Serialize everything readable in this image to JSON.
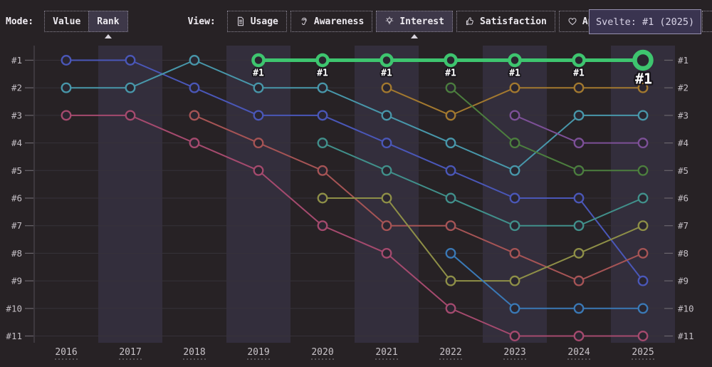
{
  "toolbar": {
    "mode_label": "Mode:",
    "modes": [
      {
        "label": "Value",
        "selected": false
      },
      {
        "label": "Rank",
        "selected": true
      }
    ],
    "view_label": "View:",
    "views": [
      {
        "label": "Usage",
        "icon": "document-icon",
        "selected": false
      },
      {
        "label": "Awareness",
        "icon": "ear-icon",
        "selected": false
      },
      {
        "label": "Interest",
        "icon": "lightbulb-icon",
        "selected": true
      },
      {
        "label": "Satisfaction",
        "icon": "thumbs-up-icon",
        "selected": false
      },
      {
        "label": "Appreciation",
        "icon": "heart-icon",
        "selected": false
      }
    ]
  },
  "tooltip": {
    "text": "Svelte: #1 (2025)"
  },
  "chart_data": {
    "type": "line",
    "subtype": "bump-rank",
    "x": [
      2016,
      2017,
      2018,
      2019,
      2020,
      2021,
      2022,
      2023,
      2024,
      2025
    ],
    "y_axis": {
      "labels": [
        "#1",
        "#2",
        "#3",
        "#4",
        "#5",
        "#6",
        "#7",
        "#8",
        "#9",
        "#10",
        "#11"
      ],
      "min": 1,
      "max": 11,
      "inverted": true
    },
    "banded_years": [
      2017,
      2019,
      2021,
      2023,
      2025
    ],
    "grid": true,
    "legend": "none",
    "highlight": {
      "name": "Svelte",
      "color": "#3ec56f",
      "years": [
        2019,
        2020,
        2021,
        2022,
        2023,
        2024,
        2025
      ],
      "ranks": [
        1,
        1,
        1,
        1,
        1,
        1,
        1
      ],
      "point_labels": [
        {
          "year": 2019,
          "text": "#1",
          "size": "small"
        },
        {
          "year": 2020,
          "text": "#1",
          "size": "small"
        },
        {
          "year": 2021,
          "text": "#1",
          "size": "small"
        },
        {
          "year": 2022,
          "text": "#1",
          "size": "small"
        },
        {
          "year": 2023,
          "text": "#1",
          "size": "small"
        },
        {
          "year": 2024,
          "text": "#1",
          "size": "small"
        },
        {
          "year": 2025,
          "text": "#1",
          "size": "large"
        }
      ]
    },
    "series": [
      {
        "id": "series-indigo",
        "color": "#4a57b8",
        "years": [
          2016,
          2017,
          2018,
          2019,
          2020,
          2021,
          2022,
          2023,
          2024,
          2025
        ],
        "ranks": [
          1,
          1,
          2,
          3,
          3,
          4,
          5,
          6,
          6,
          9
        ]
      },
      {
        "id": "series-teal",
        "color": "#4897aa",
        "years": [
          2016,
          2017,
          2018,
          2019,
          2020,
          2021,
          2022,
          2023,
          2024,
          2025
        ],
        "ranks": [
          2,
          2,
          1,
          2,
          2,
          3,
          4,
          5,
          3,
          3
        ]
      },
      {
        "id": "series-rose",
        "color": "#a54a6e",
        "years": [
          2016,
          2017,
          2018,
          2019,
          2020,
          2021,
          2022,
          2023,
          2024,
          2025
        ],
        "ranks": [
          3,
          3,
          4,
          5,
          7,
          8,
          10,
          11,
          11,
          11
        ]
      },
      {
        "id": "series-red",
        "color": "#a65455",
        "years": [
          2018,
          2019,
          2020,
          2021,
          2022,
          2023,
          2024,
          2025
        ],
        "ranks": [
          3,
          4,
          5,
          7,
          7,
          8,
          9,
          8
        ]
      },
      {
        "id": "series-seagreen",
        "color": "#41908b",
        "years": [
          2020,
          2021,
          2022,
          2023,
          2024,
          2025
        ],
        "ranks": [
          4,
          5,
          6,
          7,
          7,
          6
        ]
      },
      {
        "id": "series-olive",
        "color": "#8e8f47",
        "years": [
          2020,
          2021,
          2022,
          2023,
          2024,
          2025
        ],
        "ranks": [
          6,
          6,
          9,
          9,
          8,
          7
        ]
      },
      {
        "id": "series-gold",
        "color": "#a3792f",
        "years": [
          2021,
          2022,
          2023,
          2024,
          2025
        ],
        "ranks": [
          2,
          3,
          2,
          2,
          2
        ]
      },
      {
        "id": "series-darkgreen",
        "color": "#4c7e3e",
        "years": [
          2022,
          2023,
          2024,
          2025
        ],
        "ranks": [
          2,
          4,
          5,
          5
        ]
      },
      {
        "id": "series-steelblue",
        "color": "#3a79b6",
        "years": [
          2022,
          2023,
          2024,
          2025
        ],
        "ranks": [
          8,
          10,
          10,
          10
        ]
      },
      {
        "id": "series-purple",
        "color": "#7d5097",
        "years": [
          2023,
          2024,
          2025
        ],
        "ranks": [
          3,
          4,
          4
        ]
      }
    ]
  },
  "colors": {
    "background": "#272225",
    "band": "#332e3c",
    "grid": "#37323a",
    "axis_text": "#c4bfc5",
    "highlight": "#3ec56f",
    "tooltip_bg": "#3a3450",
    "tooltip_border": "#968fae"
  }
}
